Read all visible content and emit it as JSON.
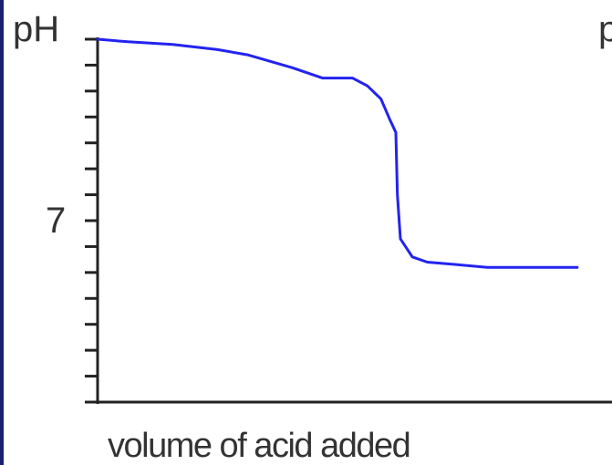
{
  "chart_data": {
    "type": "line",
    "title": "",
    "xlabel": "volume of acid added",
    "ylabel": "pH",
    "y_tick_labels": [
      {
        "value": 7,
        "label": "7"
      }
    ],
    "ylim": [
      0,
      14
    ],
    "y_tick_step": 1,
    "xlim": [
      0,
      30
    ],
    "grid": false,
    "colors": {
      "curve": "#2323f0",
      "axes": "#222222",
      "text": "#333333",
      "edge": "#1a1f6e"
    },
    "series": [
      {
        "x": [
          0,
          2,
          5,
          8,
          10,
          13,
          15,
          17,
          18,
          18.9,
          19.5,
          19.9,
          20,
          20.2,
          21,
          22,
          24,
          26,
          30,
          32
        ],
        "y": [
          14,
          13.9,
          13.8,
          13.6,
          13.4,
          12.9,
          12.5,
          12.5,
          12.2,
          11.7,
          10.9,
          10.4,
          8,
          6.3,
          5.6,
          5.4,
          5.3,
          5.2,
          5.2,
          5.2
        ]
      }
    ]
  },
  "partial_label": "p"
}
